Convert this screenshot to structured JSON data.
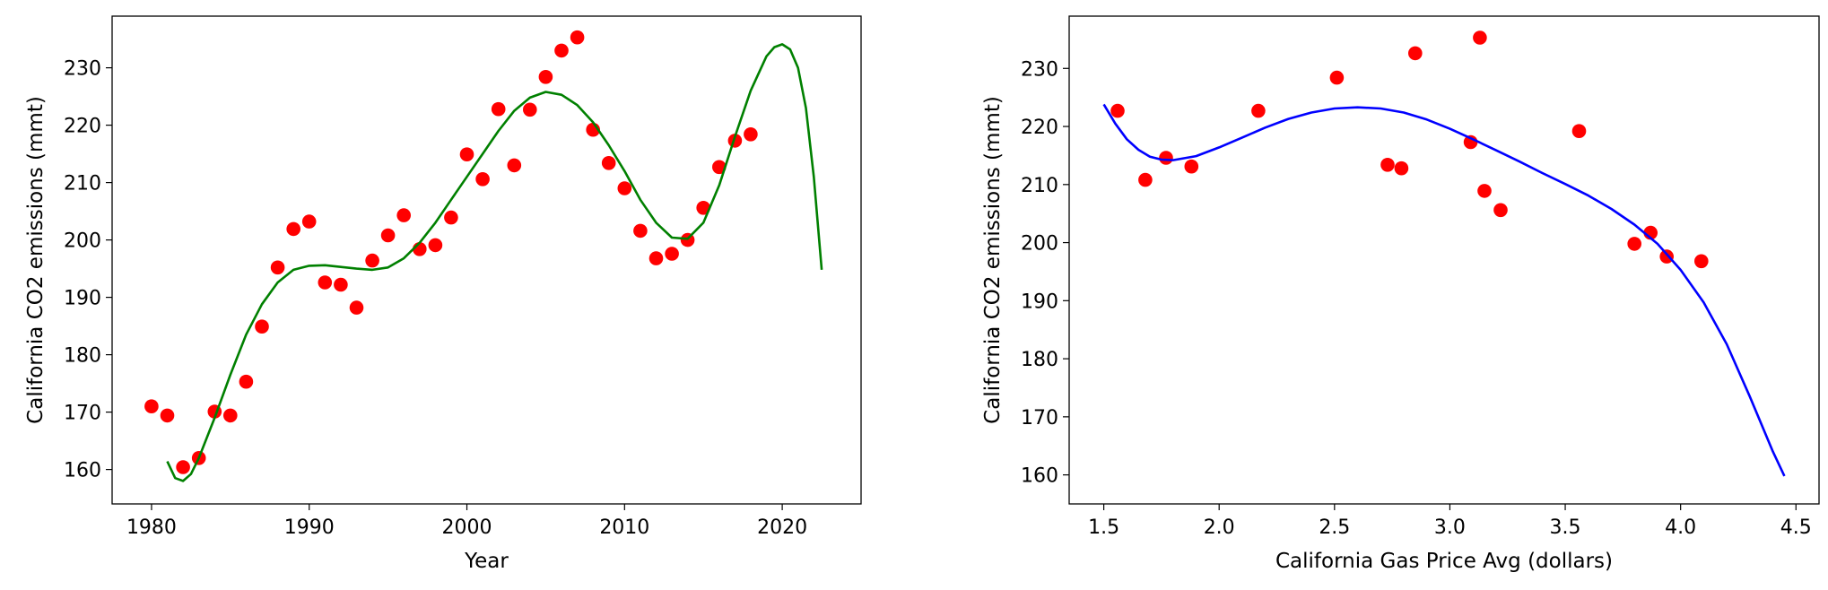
{
  "chart_data": [
    {
      "type": "scatter",
      "title": "",
      "xlabel": "Year",
      "ylabel": "California CO2 emissions (mmt)",
      "xlim": [
        1977.5,
        2025
      ],
      "ylim": [
        154,
        239
      ],
      "xticks": [
        1980,
        1990,
        2000,
        2010,
        2020
      ],
      "yticks": [
        160,
        170,
        180,
        190,
        200,
        210,
        220,
        230
      ],
      "grid": false,
      "series": [
        {
          "kind": "points",
          "color": "#ff0000",
          "points": [
            [
              1980,
              171.0
            ],
            [
              1981,
              169.4
            ],
            [
              1982,
              160.4
            ],
            [
              1983,
              162.0
            ],
            [
              1984,
              170.1
            ],
            [
              1985,
              169.4
            ],
            [
              1986,
              175.3
            ],
            [
              1987,
              184.9
            ],
            [
              1988,
              195.2
            ],
            [
              1989,
              201.9
            ],
            [
              1990,
              203.2
            ],
            [
              1991,
              192.6
            ],
            [
              1992,
              192.2
            ],
            [
              1993,
              188.2
            ],
            [
              1994,
              196.4
            ],
            [
              1995,
              200.8
            ],
            [
              1996,
              204.3
            ],
            [
              1997,
              198.4
            ],
            [
              1998,
              199.1
            ],
            [
              1999,
              203.9
            ],
            [
              2000,
              214.9
            ],
            [
              2001,
              210.6
            ],
            [
              2002,
              222.8
            ],
            [
              2003,
              213.0
            ],
            [
              2004,
              222.7
            ],
            [
              2005,
              228.4
            ],
            [
              2006,
              233.0
            ],
            [
              2007,
              235.3
            ],
            [
              2008,
              219.2
            ],
            [
              2009,
              213.4
            ],
            [
              2010,
              209.0
            ],
            [
              2011,
              201.6
            ],
            [
              2012,
              196.8
            ],
            [
              2013,
              197.6
            ],
            [
              2014,
              200.0
            ],
            [
              2015,
              205.6
            ],
            [
              2016,
              212.7
            ],
            [
              2017,
              217.3
            ],
            [
              2018,
              218.4
            ]
          ]
        },
        {
          "kind": "line",
          "color": "#008000",
          "points": [
            [
              1981,
              161.4
            ],
            [
              1981.5,
              158.5
            ],
            [
              1982,
              158.0
            ],
            [
              1982.5,
              159.2
            ],
            [
              1983,
              162.0
            ],
            [
              1984,
              169.0
            ],
            [
              1985,
              176.5
            ],
            [
              1986,
              183.5
            ],
            [
              1987,
              188.8
            ],
            [
              1988,
              192.6
            ],
            [
              1989,
              194.8
            ],
            [
              1990,
              195.5
            ],
            [
              1991,
              195.6
            ],
            [
              1992,
              195.3
            ],
            [
              1993,
              195.0
            ],
            [
              1994,
              194.8
            ],
            [
              1995,
              195.2
            ],
            [
              1996,
              196.8
            ],
            [
              1997,
              199.5
            ],
            [
              1998,
              203.0
            ],
            [
              1999,
              207.0
            ],
            [
              2000,
              211.0
            ],
            [
              2001,
              215.0
            ],
            [
              2002,
              219.0
            ],
            [
              2003,
              222.5
            ],
            [
              2004,
              224.8
            ],
            [
              2005,
              225.8
            ],
            [
              2006,
              225.3
            ],
            [
              2007,
              223.5
            ],
            [
              2008,
              220.5
            ],
            [
              2009,
              216.5
            ],
            [
              2010,
              212.0
            ],
            [
              2011,
              207.0
            ],
            [
              2012,
              203.0
            ],
            [
              2013,
              200.4
            ],
            [
              2014,
              200.2
            ],
            [
              2015,
              203.0
            ],
            [
              2016,
              209.5
            ],
            [
              2017,
              218.0
            ],
            [
              2018,
              226.0
            ],
            [
              2019,
              232.0
            ],
            [
              2019.5,
              233.6
            ],
            [
              2020,
              234.1
            ],
            [
              2020.5,
              233.2
            ],
            [
              2021,
              230.0
            ],
            [
              2021.5,
              223.0
            ],
            [
              2022,
              211.0
            ],
            [
              2022.5,
              194.8
            ]
          ]
        }
      ]
    },
    {
      "type": "scatter",
      "title": "",
      "xlabel": "California Gas Price Avg (dollars)",
      "ylabel": "California CO2 emissions (mmt)",
      "xlim": [
        1.35,
        4.6
      ],
      "ylim": [
        155,
        239
      ],
      "xticks": [
        "1.5",
        "2.0",
        "2.5",
        "3.0",
        "3.5",
        "4.0",
        "4.5"
      ],
      "yticks": [
        160,
        170,
        180,
        190,
        200,
        210,
        220,
        230
      ],
      "grid": false,
      "series": [
        {
          "kind": "points",
          "color": "#ff0000",
          "points": [
            [
              1.56,
              222.7
            ],
            [
              1.68,
              210.8
            ],
            [
              1.77,
              214.6
            ],
            [
              1.88,
              213.1
            ],
            [
              2.17,
              222.7
            ],
            [
              2.51,
              228.4
            ],
            [
              2.73,
              213.4
            ],
            [
              2.79,
              212.8
            ],
            [
              2.85,
              232.6
            ],
            [
              3.09,
              217.3
            ],
            [
              3.13,
              235.3
            ],
            [
              3.15,
              208.9
            ],
            [
              3.22,
              205.6
            ],
            [
              3.56,
              219.2
            ],
            [
              3.8,
              199.8
            ],
            [
              3.87,
              201.7
            ],
            [
              3.94,
              197.6
            ],
            [
              4.09,
              196.8
            ]
          ]
        },
        {
          "kind": "line",
          "color": "#0000ff",
          "points": [
            [
              1.5,
              223.8
            ],
            [
              1.55,
              220.5
            ],
            [
              1.6,
              217.8
            ],
            [
              1.65,
              216.0
            ],
            [
              1.7,
              214.8
            ],
            [
              1.75,
              214.3
            ],
            [
              1.8,
              214.2
            ],
            [
              1.9,
              214.9
            ],
            [
              2.0,
              216.4
            ],
            [
              2.1,
              218.1
            ],
            [
              2.2,
              219.8
            ],
            [
              2.3,
              221.3
            ],
            [
              2.4,
              222.4
            ],
            [
              2.5,
              223.1
            ],
            [
              2.6,
              223.3
            ],
            [
              2.7,
              223.1
            ],
            [
              2.8,
              222.4
            ],
            [
              2.9,
              221.2
            ],
            [
              3.0,
              219.6
            ],
            [
              3.1,
              217.8
            ],
            [
              3.2,
              215.9
            ],
            [
              3.3,
              214.0
            ],
            [
              3.4,
              212.0
            ],
            [
              3.5,
              210.1
            ],
            [
              3.6,
              208.1
            ],
            [
              3.7,
              205.8
            ],
            [
              3.8,
              203.1
            ],
            [
              3.9,
              199.8
            ],
            [
              4.0,
              195.3
            ],
            [
              4.1,
              189.7
            ],
            [
              4.2,
              182.5
            ],
            [
              4.3,
              173.5
            ],
            [
              4.4,
              164.0
            ],
            [
              4.45,
              159.8
            ]
          ]
        }
      ]
    }
  ]
}
